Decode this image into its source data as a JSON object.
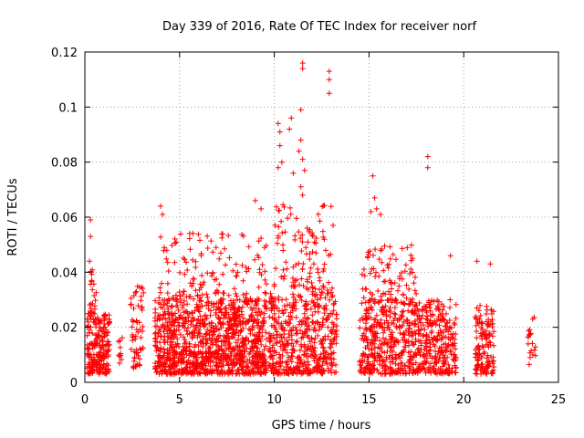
{
  "chart_data": {
    "type": "scatter",
    "title": "Day 339 of 2016, Rate Of TEC Index for receiver norf",
    "xlabel": "GPS time / hours",
    "ylabel": "ROTI / TECUs",
    "xlim": [
      0,
      25
    ],
    "ylim": [
      0,
      0.12
    ],
    "xticks": [
      "0",
      "5",
      "10",
      "15",
      "20",
      "25"
    ],
    "yticks": [
      "0",
      "0.02",
      "0.04",
      "0.06",
      "0.08",
      "0.1",
      "0.12"
    ],
    "grid": true,
    "marker": "+",
    "color": "#ff0000",
    "clusters": [
      {
        "x": [
          0.1,
          1.3
        ],
        "ymin": 0.003,
        "ymax": 0.025,
        "n": 220
      },
      {
        "x": [
          0.2,
          0.6
        ],
        "ymin": 0.025,
        "ymax": 0.045,
        "n": 25
      },
      {
        "x": [
          1.7,
          2.0
        ],
        "ymin": 0.006,
        "ymax": 0.018,
        "n": 10
      },
      {
        "x": [
          2.4,
          3.1
        ],
        "ymin": 0.005,
        "ymax": 0.035,
        "n": 60
      },
      {
        "x": [
          3.7,
          9.6
        ],
        "ymin": 0.003,
        "ymax": 0.03,
        "n": 1100
      },
      {
        "x": [
          3.9,
          9.6
        ],
        "ymin": 0.03,
        "ymax": 0.055,
        "n": 140
      },
      {
        "x": [
          9.7,
          13.3
        ],
        "ymin": 0.003,
        "ymax": 0.035,
        "n": 500
      },
      {
        "x": [
          9.8,
          13.0
        ],
        "ymin": 0.035,
        "ymax": 0.065,
        "n": 90
      },
      {
        "x": [
          14.5,
          19.6
        ],
        "ymin": 0.003,
        "ymax": 0.03,
        "n": 700
      },
      {
        "x": [
          14.6,
          17.5
        ],
        "ymin": 0.03,
        "ymax": 0.05,
        "n": 80
      },
      {
        "x": [
          20.6,
          21.6
        ],
        "ymin": 0.003,
        "ymax": 0.028,
        "n": 140
      },
      {
        "x": [
          23.4,
          23.8
        ],
        "ymin": 0.006,
        "ymax": 0.025,
        "n": 20
      }
    ],
    "points": [
      {
        "x": 0.3,
        "y": 0.059
      },
      {
        "x": 0.3,
        "y": 0.053
      },
      {
        "x": 4.0,
        "y": 0.064
      },
      {
        "x": 4.1,
        "y": 0.061
      },
      {
        "x": 9.0,
        "y": 0.066
      },
      {
        "x": 9.3,
        "y": 0.063
      },
      {
        "x": 10.2,
        "y": 0.094
      },
      {
        "x": 10.3,
        "y": 0.091
      },
      {
        "x": 10.3,
        "y": 0.086
      },
      {
        "x": 10.4,
        "y": 0.08
      },
      {
        "x": 10.2,
        "y": 0.078
      },
      {
        "x": 10.9,
        "y": 0.096
      },
      {
        "x": 10.8,
        "y": 0.092
      },
      {
        "x": 11.0,
        "y": 0.076
      },
      {
        "x": 11.5,
        "y": 0.116
      },
      {
        "x": 11.5,
        "y": 0.114
      },
      {
        "x": 11.4,
        "y": 0.099
      },
      {
        "x": 11.4,
        "y": 0.088
      },
      {
        "x": 11.3,
        "y": 0.084
      },
      {
        "x": 11.5,
        "y": 0.081
      },
      {
        "x": 11.6,
        "y": 0.077
      },
      {
        "x": 11.4,
        "y": 0.071
      },
      {
        "x": 11.5,
        "y": 0.068
      },
      {
        "x": 12.9,
        "y": 0.113
      },
      {
        "x": 12.9,
        "y": 0.11
      },
      {
        "x": 12.9,
        "y": 0.105
      },
      {
        "x": 13.1,
        "y": 0.057
      },
      {
        "x": 15.2,
        "y": 0.075
      },
      {
        "x": 15.3,
        "y": 0.067
      },
      {
        "x": 15.4,
        "y": 0.063
      },
      {
        "x": 15.1,
        "y": 0.062
      },
      {
        "x": 15.6,
        "y": 0.061
      },
      {
        "x": 18.1,
        "y": 0.082
      },
      {
        "x": 18.1,
        "y": 0.078
      },
      {
        "x": 19.3,
        "y": 0.046
      },
      {
        "x": 20.7,
        "y": 0.044
      },
      {
        "x": 21.4,
        "y": 0.043
      },
      {
        "x": 12.2,
        "y": 0.047
      }
    ]
  }
}
